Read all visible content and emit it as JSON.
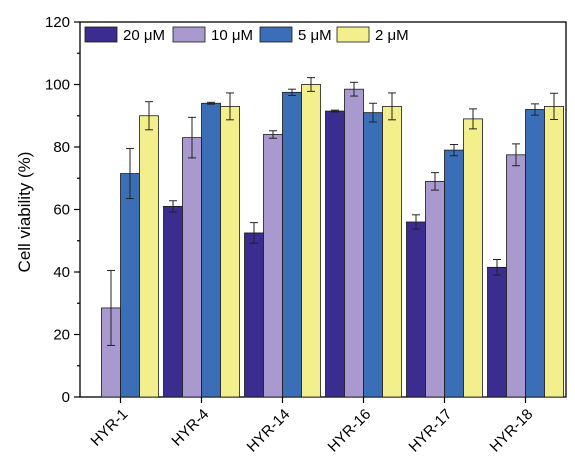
{
  "chart_data": {
    "type": "bar",
    "ylabel": "Cell viability (%)",
    "xlabel": "",
    "ylim": [
      0,
      120
    ],
    "yticks": [
      0,
      20,
      40,
      60,
      80,
      100,
      120
    ],
    "grid": false,
    "legend_position": "top",
    "categories": [
      "HYR-1",
      "HYR-4",
      "HYR-14",
      "HYR-16",
      "HYR-17",
      "HYR-18"
    ],
    "series": [
      {
        "name": "20 μM",
        "color": "#3a2d8f",
        "values": [
          null,
          61,
          52.5,
          91.5,
          56,
          41.5
        ],
        "errors": [
          null,
          1.8,
          3.3,
          0.3,
          2.3,
          2.5
        ]
      },
      {
        "name": "10 μM",
        "color": "#a999cf",
        "values": [
          28.5,
          83,
          84,
          98.5,
          69,
          77.5
        ],
        "errors": [
          12,
          6.5,
          1.2,
          2.2,
          2.8,
          3.5
        ]
      },
      {
        "name": "5 μM",
        "color": "#3a6fb7",
        "values": [
          71.5,
          94,
          97.5,
          91,
          79,
          92
        ],
        "errors": [
          8,
          0.3,
          1,
          3,
          1.8,
          1.8
        ]
      },
      {
        "name": "2 μM",
        "color": "#f2ef8c",
        "values": [
          90,
          93,
          100,
          93,
          89,
          93
        ],
        "errors": [
          4.5,
          4.3,
          2.2,
          4.3,
          3.2,
          4.2
        ]
      }
    ]
  }
}
